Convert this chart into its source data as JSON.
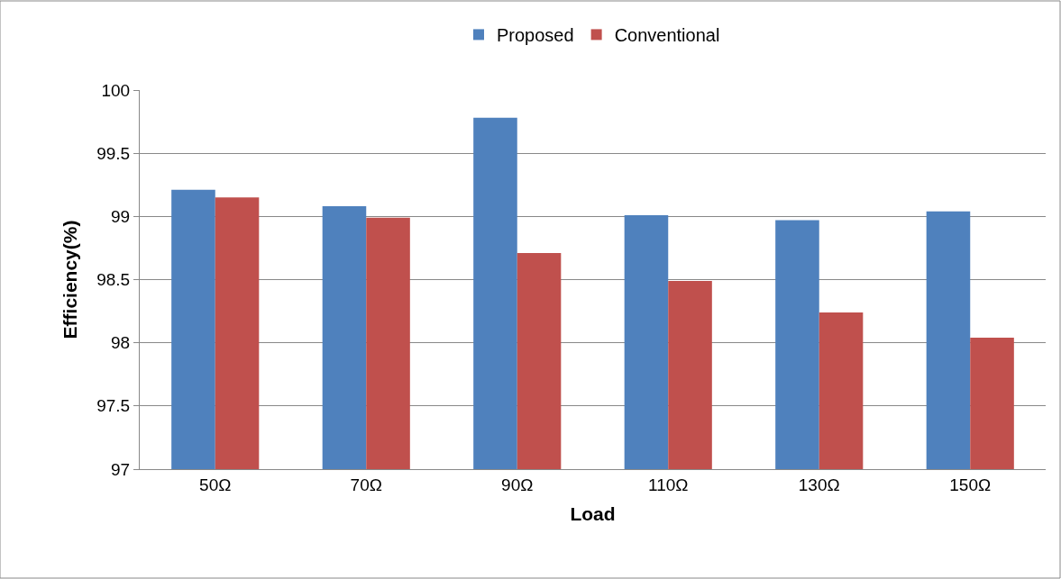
{
  "chart_data": {
    "type": "bar",
    "xlabel": "Load",
    "ylabel": "Efficiency(%)",
    "categories": [
      "50Ω",
      "70Ω",
      "90Ω",
      "110Ω",
      "130Ω",
      "150Ω"
    ],
    "series": [
      {
        "name": "Proposed",
        "color": "#4f81bd",
        "values": [
          99.21,
          99.08,
          99.78,
          99.01,
          98.97,
          99.04
        ]
      },
      {
        "name": "Conventional",
        "color": "#c0504d",
        "values": [
          99.15,
          98.99,
          98.71,
          98.49,
          98.24,
          98.04
        ]
      }
    ],
    "ylim": [
      97,
      100
    ],
    "yticks": [
      97,
      97.5,
      98,
      98.5,
      99,
      99.5,
      100
    ],
    "grid": "y",
    "legend": "top"
  }
}
